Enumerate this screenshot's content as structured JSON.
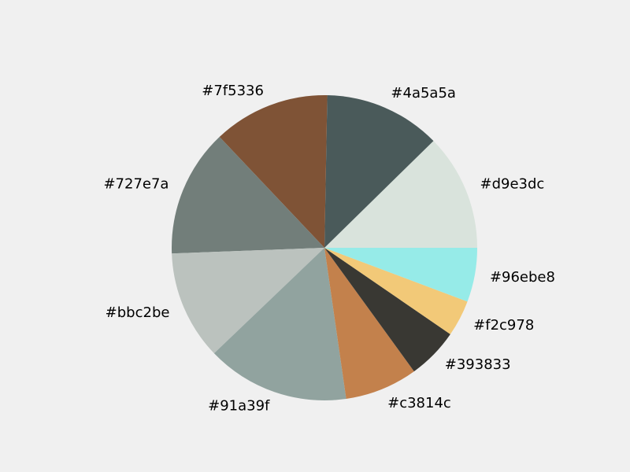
{
  "chart_data": {
    "type": "pie",
    "title": "",
    "start_angle_deg": 0,
    "direction": "counterclockwise",
    "legend": "none",
    "labels": [
      "#d9e3dc",
      "#4a5a5a",
      "#7f5336",
      "#727e7a",
      "#bbc2be",
      "#91a39f",
      "#c3814c",
      "#393833",
      "#f2c978",
      "#96ebe8"
    ],
    "values": [
      12.5,
      12.5,
      12.5,
      13.7,
      11.7,
      15.3,
      7.8,
      5.5,
      3.9,
      5.8
    ],
    "colors": [
      "#d9e3dc",
      "#4a5a5a",
      "#7f5336",
      "#727e7a",
      "#bbc2be",
      "#91a39f",
      "#c3814c",
      "#393833",
      "#f2c978",
      "#96ebe8"
    ]
  },
  "background": "#f0f0f0"
}
